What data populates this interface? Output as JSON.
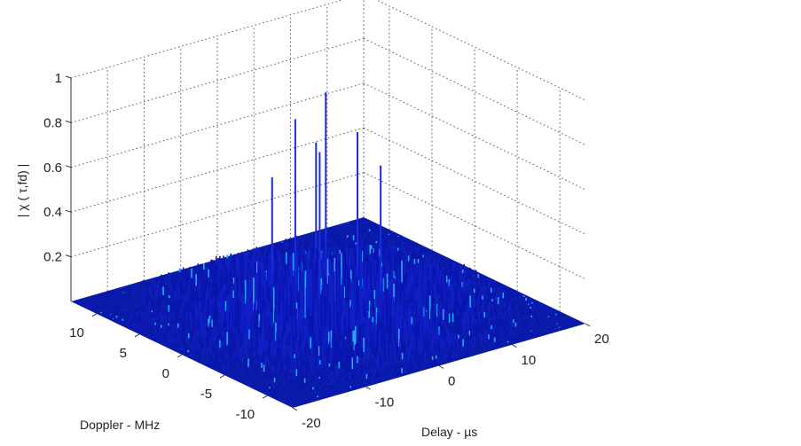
{
  "chart_data": {
    "type": "surface",
    "title": "",
    "xlabel": "Delay - µs",
    "ylabel": "Doppler - MHz",
    "zlabel": "| χ ( τ,fd) |",
    "xlim": [
      -20,
      20
    ],
    "ylim": [
      -13,
      13
    ],
    "zlim": [
      0,
      1
    ],
    "xticks": [
      "-20",
      "-10",
      "0",
      "10",
      "20"
    ],
    "yticks": [
      "10",
      "5",
      "0",
      "-5",
      "-10"
    ],
    "zticks": [
      "0.2",
      "0.4",
      "0.6",
      "0.8",
      "1"
    ],
    "grid": true,
    "colormap": "jet",
    "floor_color": "#0a1aa8",
    "peaks": [
      {
        "delay": 2,
        "doppler": 2,
        "value": 0.93
      },
      {
        "delay": -1,
        "doppler": 3,
        "value": 0.82
      },
      {
        "delay": 4,
        "doppler": 0,
        "value": 0.77
      },
      {
        "delay": 0,
        "doppler": 1,
        "value": 0.7
      },
      {
        "delay": -3,
        "doppler": 4,
        "value": 0.56
      },
      {
        "delay": 6,
        "doppler": -1,
        "value": 0.62
      },
      {
        "delay": 3,
        "doppler": 4,
        "value": 0.66
      }
    ],
    "sidelobe_level": 0.3
  }
}
